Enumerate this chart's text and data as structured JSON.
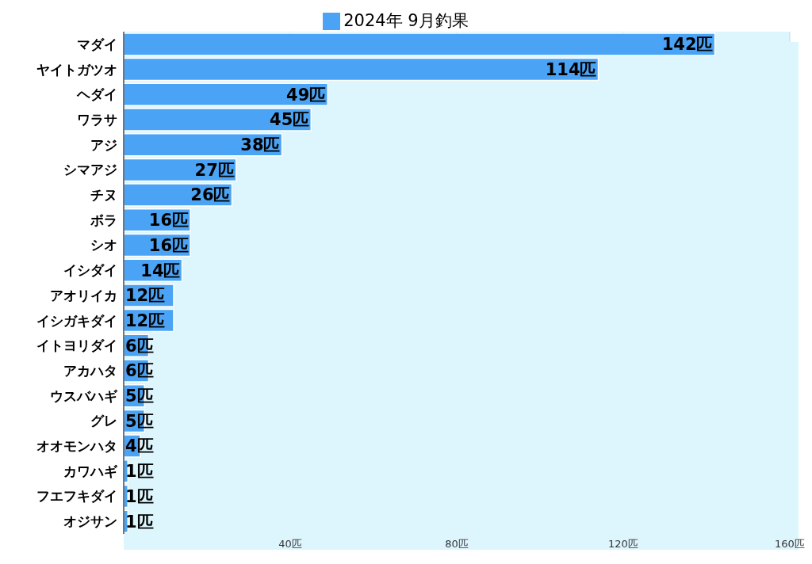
{
  "chart_data": {
    "type": "bar",
    "orientation": "horizontal",
    "categories": [
      "マダイ",
      "ヤイトガツオ",
      "ヘダイ",
      "ワラサ",
      "アジ",
      "シマアジ",
      "チヌ",
      "ボラ",
      "シオ",
      "イシダイ",
      "アオリイカ",
      "イシガキダイ",
      "イトヨリダイ",
      "アカハタ",
      "ウスバハギ",
      "グレ",
      "オオモンハタ",
      "カワハギ",
      "フエフキダイ",
      "オジサン"
    ],
    "series": [
      {
        "name": "2024年 9月釣果",
        "color": "#4aa3f5",
        "values": [
          142,
          114,
          49,
          45,
          38,
          27,
          26,
          16,
          16,
          14,
          12,
          12,
          6,
          6,
          5,
          5,
          4,
          1,
          1,
          1
        ],
        "value_labels": [
          "142匹",
          "114匹",
          "49匹",
          "45匹",
          "38匹",
          "27匹",
          "26匹",
          "16匹",
          "16匹",
          "14匹",
          "12匹",
          "12匹",
          "6匹",
          "6匹",
          "5匹",
          "5匹",
          "4匹",
          "1匹",
          "1匹",
          "1匹"
        ]
      }
    ],
    "xlim": [
      0,
      160
    ],
    "xticks": [
      {
        "value": 40,
        "label": "40匹"
      },
      {
        "value": 80,
        "label": "80匹"
      },
      {
        "value": 120,
        "label": "120匹"
      },
      {
        "value": 160,
        "label": "160匹"
      }
    ],
    "grid": "x",
    "legend": "top"
  }
}
